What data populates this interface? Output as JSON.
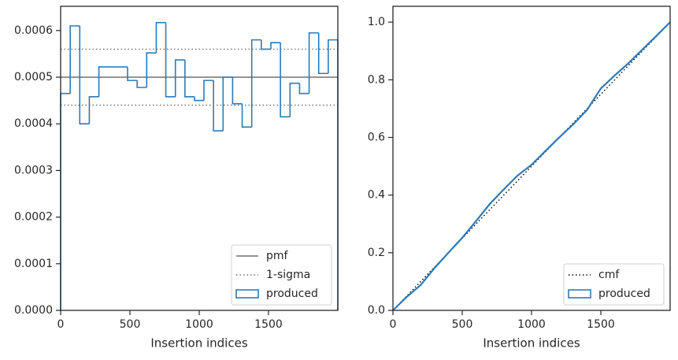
{
  "chart_data": [
    {
      "type": "histogram",
      "xlabel": "Insertion indices",
      "xlim": [
        0,
        2000
      ],
      "xticks": [
        0,
        500,
        1000,
        1500
      ],
      "ylim": [
        0,
        0.000652
      ],
      "yticks": [
        {
          "value": 0,
          "label": "0.0000"
        },
        {
          "value": 0.0001,
          "label": "0.0001"
        },
        {
          "value": 0.0002,
          "label": "0.0002"
        },
        {
          "value": 0.0003,
          "label": "0.0003"
        },
        {
          "value": 0.0004,
          "label": "0.0004"
        },
        {
          "value": 0.0005,
          "label": "0.0005"
        },
        {
          "value": 0.0006,
          "label": "0.0006"
        }
      ],
      "bins": [
        0,
        69,
        138,
        207,
        276,
        345,
        414,
        483,
        552,
        621,
        690,
        759,
        828,
        897,
        966,
        1034,
        1103,
        1172,
        1241,
        1310,
        1379,
        1448,
        1517,
        1586,
        1655,
        1724,
        1793,
        1862,
        1931,
        2000
      ],
      "series": [
        {
          "name": "produced",
          "color": "#2b7bba",
          "values": [
            0.000465,
            0.00061,
            0.0004,
            0.000458,
            0.000522,
            0.000522,
            0.000522,
            0.000493,
            0.000478,
            0.000552,
            0.000617,
            0.000458,
            0.000537,
            0.000458,
            0.00045,
            0.000493,
            0.000385,
            0.0005,
            0.000443,
            0.000393,
            0.00058,
            0.00056,
            0.000574,
            0.000415,
            0.000487,
            0.000465,
            0.000595,
            0.000508,
            0.00058
          ]
        }
      ],
      "hlines": [
        {
          "name": "pmf",
          "color": "#707070",
          "style": "solid",
          "values": [
            0.0005
          ]
        },
        {
          "name": "1-sigma",
          "color": "#707070",
          "style": "dotted",
          "values": [
            0.00044,
            0.00056
          ]
        }
      ],
      "legend": "lower right"
    },
    {
      "type": "line",
      "xlabel": "Insertion indices",
      "xlim": [
        0,
        2000
      ],
      "xticks": [
        0,
        500,
        1000,
        1500
      ],
      "ylim": [
        0,
        1.055
      ],
      "yticks": [
        {
          "value": 0,
          "label": "0.0"
        },
        {
          "value": 0.2,
          "label": "0.2"
        },
        {
          "value": 0.4,
          "label": "0.4"
        },
        {
          "value": 0.6,
          "label": "0.6"
        },
        {
          "value": 0.8,
          "label": "0.8"
        },
        {
          "value": 1,
          "label": "1.0"
        }
      ],
      "series": [
        {
          "name": "cmf",
          "color": "#000000",
          "style": "dotted",
          "x": [
            0,
            2000
          ],
          "values": [
            0,
            1
          ]
        },
        {
          "name": "produced",
          "color": "#2b7bba",
          "style": "step",
          "x": [
            0,
            100,
            200,
            300,
            400,
            500,
            600,
            700,
            800,
            900,
            1000,
            1100,
            1200,
            1300,
            1400,
            1500,
            1600,
            1700,
            1800,
            1900,
            2000
          ],
          "values": [
            0,
            0.047,
            0.088,
            0.147,
            0.2,
            0.252,
            0.31,
            0.37,
            0.42,
            0.468,
            0.505,
            0.553,
            0.6,
            0.645,
            0.695,
            0.77,
            0.815,
            0.858,
            0.905,
            0.952,
            1
          ]
        }
      ],
      "legend": "lower right"
    }
  ]
}
